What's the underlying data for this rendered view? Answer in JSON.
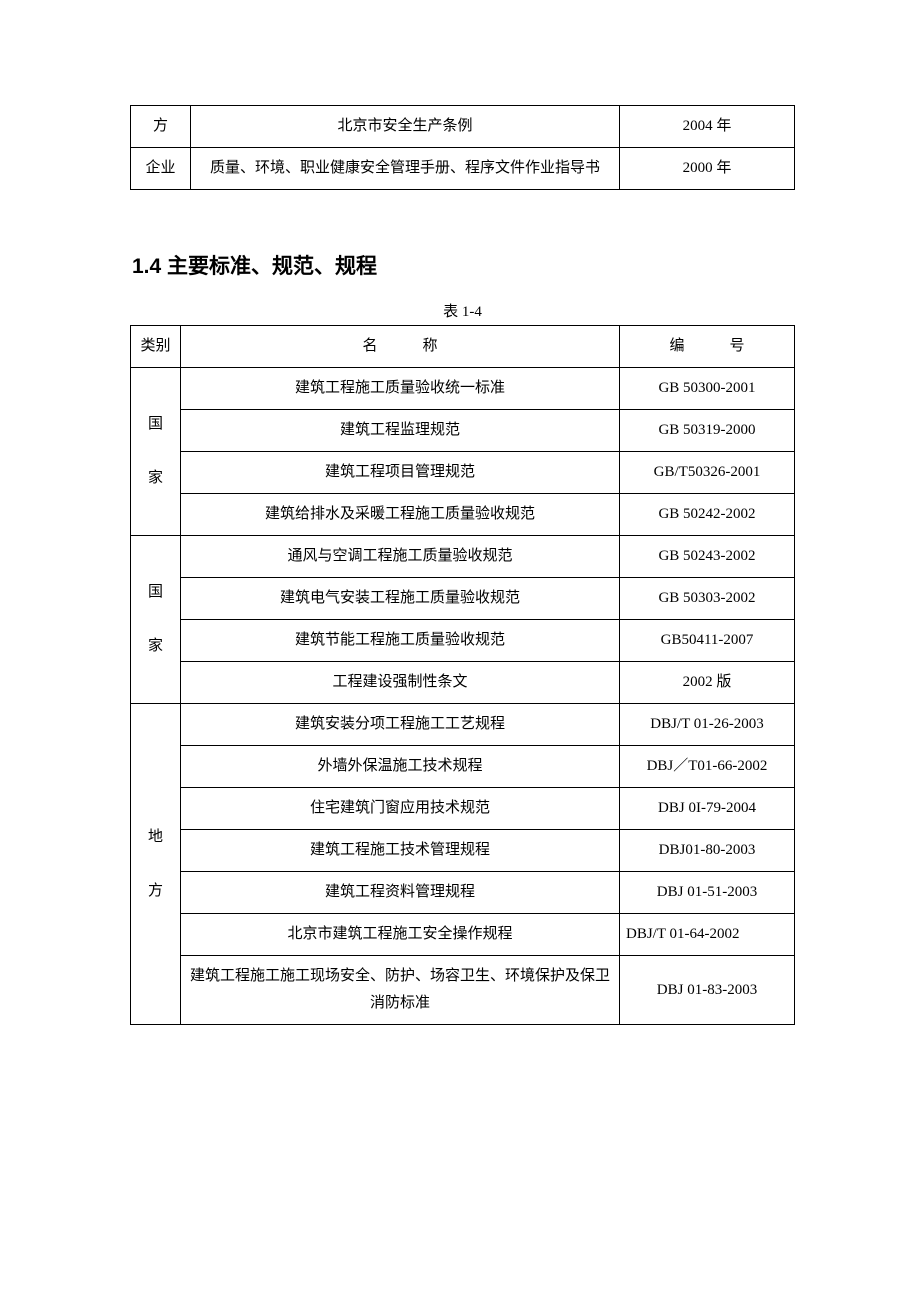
{
  "table1": {
    "rows": [
      {
        "cat": "方",
        "name": "北京市安全生产条例",
        "num": "2004 年"
      },
      {
        "cat": "企业",
        "name": "质量、环境、职业健康安全管理手册、程序文件作业指导书",
        "num": "2000 年"
      }
    ]
  },
  "section_heading": "1.4 主要标准、规范、规程",
  "table2": {
    "caption": "表 1-4",
    "header": {
      "cat": "类别",
      "name": "名　　　称",
      "num": "编　　　号"
    },
    "group1_cat": "国家",
    "group1b_cat": "国家",
    "group1": [
      {
        "name": "建筑工程施工质量验收统一标准",
        "num": "GB 50300-2001"
      },
      {
        "name": "建筑工程监理规范",
        "num": "GB 50319-2000"
      },
      {
        "name": "建筑工程项目管理规范",
        "num": "GB/T50326-2001"
      },
      {
        "name": "建筑给排水及采暖工程施工质量验收规范",
        "num": "GB 50242-2002"
      },
      {
        "name": "通风与空调工程施工质量验收规范",
        "num": "GB 50243-2002"
      },
      {
        "name": "建筑电气安装工程施工质量验收规范",
        "num": "GB 50303-2002"
      },
      {
        "name": "建筑节能工程施工质量验收规范",
        "num": "GB50411-2007"
      },
      {
        "name": "工程建设强制性条文",
        "num": "2002 版"
      }
    ],
    "group2_cat": "地方",
    "group2": [
      {
        "name": "建筑安装分项工程施工工艺规程",
        "num": "DBJ/T 01-26-2003"
      },
      {
        "name": "外墙外保温施工技术规程",
        "num": "DBJ／T01-66-2002"
      },
      {
        "name": "住宅建筑门窗应用技术规范",
        "num": "DBJ 0I-79-2004"
      },
      {
        "name": "建筑工程施工技术管理规程",
        "num": "DBJ01-80-2003"
      },
      {
        "name": "建筑工程资料管理规程",
        "num": "DBJ 01-51-2003"
      },
      {
        "name": "北京市建筑工程施工安全操作规程",
        "num": "DBJ/T 01-64-2002",
        "align": "left"
      },
      {
        "name": "建筑工程施工施工现场安全、防护、场容卫生、环境保护及保卫消防标准",
        "num": "DBJ 01-83-2003"
      }
    ]
  },
  "style": {
    "text_color": "#000000",
    "bg_color": "#ffffff",
    "border_color": "#000000",
    "body_fontsize": 15,
    "heading_fontsize": 21
  }
}
